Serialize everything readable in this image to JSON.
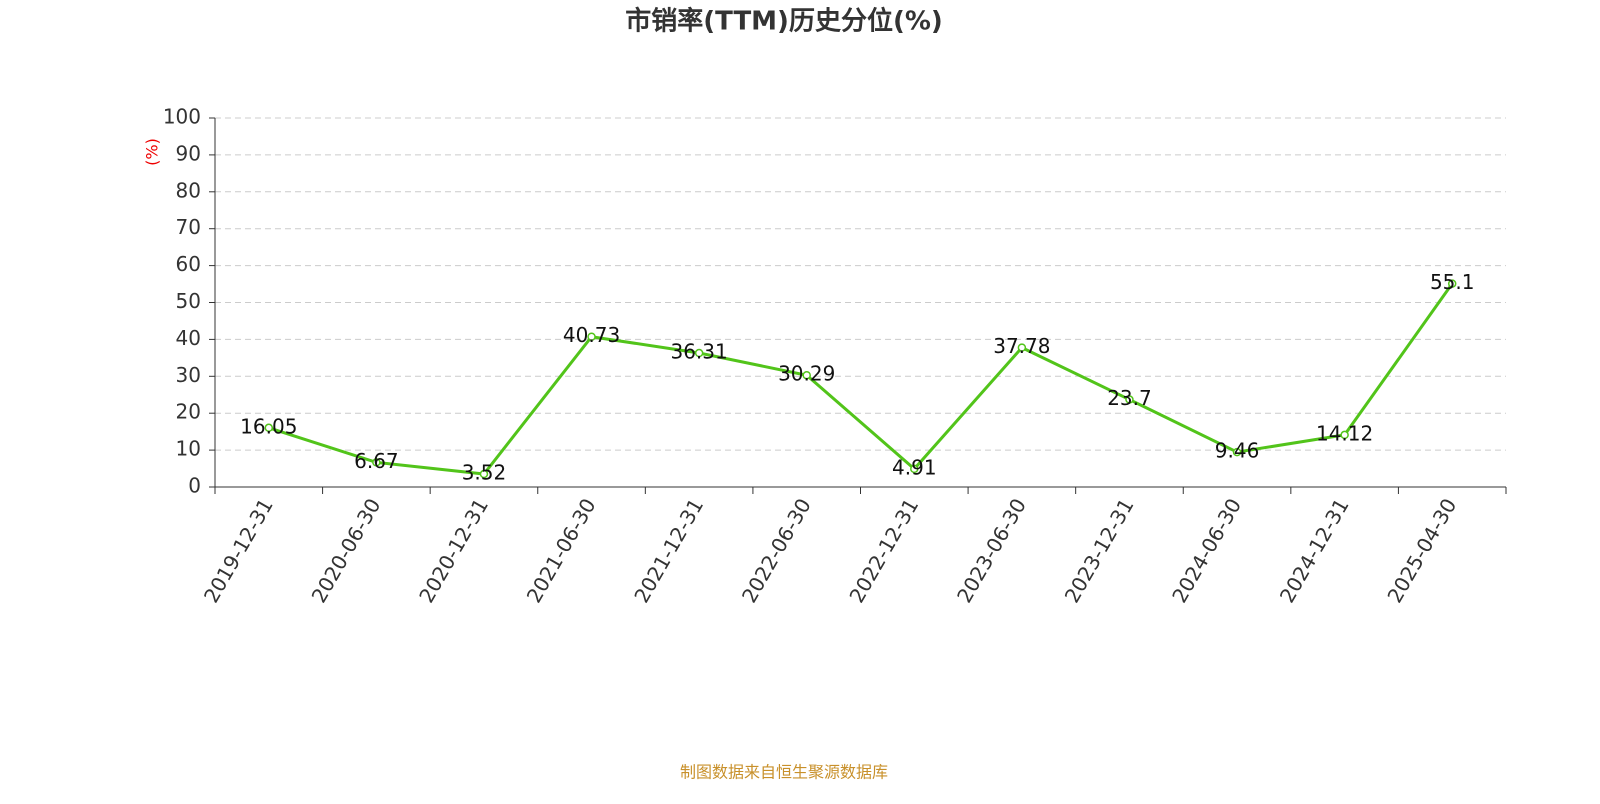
{
  "chart_data": {
    "type": "line",
    "title": "市销率(TTM)历史分位(%)",
    "y_label": "(%)",
    "source": "制图数据来自恒生聚源数据库",
    "categories": [
      "2019-12-31",
      "2020-06-30",
      "2020-12-31",
      "2021-06-30",
      "2021-12-31",
      "2022-06-30",
      "2022-12-31",
      "2023-06-30",
      "2023-12-31",
      "2024-06-30",
      "2024-12-31",
      "2025-04-30"
    ],
    "series": [
      {
        "name": "市销率(TTM)历史分位",
        "color": "#52c41a",
        "values": [
          16.05,
          6.67,
          3.52,
          40.73,
          36.31,
          30.29,
          4.91,
          37.78,
          23.7,
          9.46,
          14.12,
          55.1
        ]
      }
    ],
    "ylim": [
      0,
      100
    ],
    "yticks": [
      0,
      10,
      20,
      30,
      40,
      50,
      60,
      70,
      80,
      90,
      100
    ],
    "grid": true
  }
}
